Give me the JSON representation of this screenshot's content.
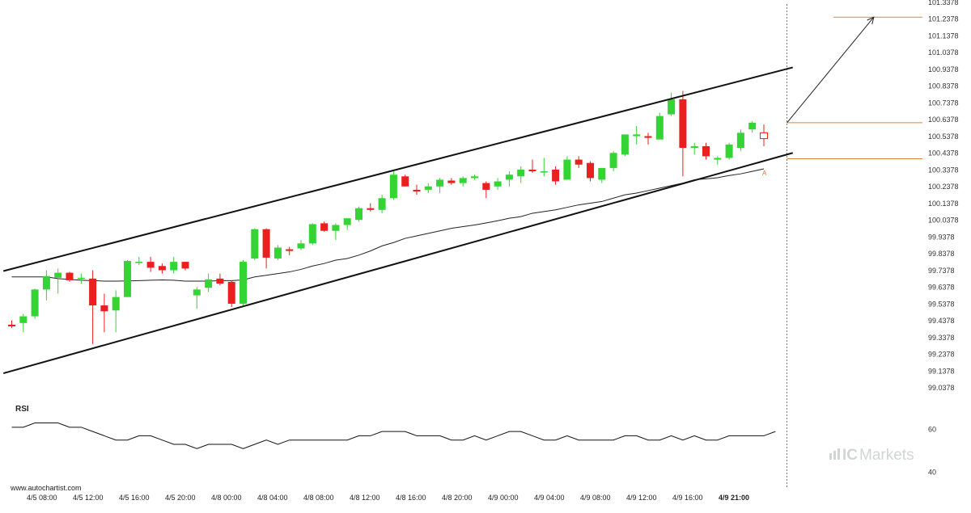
{
  "colors": {
    "up": "#34d434",
    "down": "#ea1f1f",
    "level": "#e0823a",
    "channel": "#111111",
    "forecast": "#222222",
    "sma": "#222222",
    "brand": "#cfd6d4"
  },
  "watermark": "www.autochartist.com",
  "brand": {
    "prefix": "IC",
    "suffix": "Markets",
    "icon": "bar-chart-logo-icon"
  },
  "chart_data": [
    {
      "type": "candlestick",
      "title": "",
      "ylim": [
        99.0,
        101.3378
      ],
      "y_ticks": [
        "101.3378",
        "101.2378",
        "101.1378",
        "101.0378",
        "100.9378",
        "100.8378",
        "100.7378",
        "100.6378",
        "100.5378",
        "100.4378",
        "100.3378",
        "100.2378",
        "100.1378",
        "100.0378",
        "99.9378",
        "99.8378",
        "99.7378",
        "99.6378",
        "99.5378",
        "99.4378",
        "99.3378",
        "99.2378",
        "99.1378",
        "99.0378"
      ],
      "x_ticks": [
        "4/5 08:00",
        "4/5 12:00",
        "4/5 16:00",
        "4/5 20:00",
        "4/8 00:00",
        "4/8 04:00",
        "4/8 08:00",
        "4/8 12:00",
        "4/8 16:00",
        "4/8 20:00",
        "4/9 00:00",
        "4/9 04:00",
        "4/9 08:00",
        "4/9 12:00",
        "4/9 16:00",
        "4/9 21:00"
      ],
      "highlighted_x_tick": "4/9 21:00",
      "candles": [
        {
          "o": 99.415,
          "h": 99.44,
          "l": 99.395,
          "c": 99.405
        },
        {
          "o": 99.425,
          "h": 99.48,
          "l": 99.37,
          "c": 99.465
        },
        {
          "o": 99.465,
          "h": 99.63,
          "l": 99.45,
          "c": 99.625
        },
        {
          "o": 99.625,
          "h": 99.74,
          "l": 99.56,
          "c": 99.705
        },
        {
          "o": 99.695,
          "h": 99.75,
          "l": 99.6,
          "c": 99.725
        },
        {
          "o": 99.725,
          "h": 99.73,
          "l": 99.67,
          "c": 99.68
        },
        {
          "o": 99.69,
          "h": 99.72,
          "l": 99.66,
          "c": 99.695
        },
        {
          "o": 99.69,
          "h": 99.74,
          "l": 99.3,
          "c": 99.53
        },
        {
          "o": 99.53,
          "h": 99.6,
          "l": 99.37,
          "c": 99.495
        },
        {
          "o": 99.5,
          "h": 99.62,
          "l": 99.37,
          "c": 99.58
        },
        {
          "o": 99.58,
          "h": 99.8,
          "l": 99.58,
          "c": 99.795
        },
        {
          "o": 99.79,
          "h": 99.82,
          "l": 99.77,
          "c": 99.79
        },
        {
          "o": 99.79,
          "h": 99.82,
          "l": 99.73,
          "c": 99.755
        },
        {
          "o": 99.765,
          "h": 99.78,
          "l": 99.72,
          "c": 99.74
        },
        {
          "o": 99.74,
          "h": 99.82,
          "l": 99.72,
          "c": 99.79
        },
        {
          "o": 99.79,
          "h": 99.79,
          "l": 99.74,
          "c": 99.75
        },
        {
          "o": 99.59,
          "h": 99.64,
          "l": 99.51,
          "c": 99.625
        },
        {
          "o": 99.635,
          "h": 99.72,
          "l": 99.61,
          "c": 99.685
        },
        {
          "o": 99.69,
          "h": 99.72,
          "l": 99.65,
          "c": 99.66
        },
        {
          "o": 99.67,
          "h": 99.68,
          "l": 99.52,
          "c": 99.54
        },
        {
          "o": 99.54,
          "h": 99.8,
          "l": 99.52,
          "c": 99.79
        },
        {
          "o": 99.81,
          "h": 99.99,
          "l": 99.8,
          "c": 99.985
        },
        {
          "o": 99.985,
          "h": 99.99,
          "l": 99.75,
          "c": 99.815
        },
        {
          "o": 99.81,
          "h": 99.89,
          "l": 99.8,
          "c": 99.875
        },
        {
          "o": 99.865,
          "h": 99.88,
          "l": 99.83,
          "c": 99.855
        },
        {
          "o": 99.87,
          "h": 99.92,
          "l": 99.86,
          "c": 99.9
        },
        {
          "o": 99.9,
          "h": 100.02,
          "l": 99.89,
          "c": 100.015
        },
        {
          "o": 100.02,
          "h": 100.03,
          "l": 99.97,
          "c": 99.975
        },
        {
          "o": 99.975,
          "h": 100.02,
          "l": 99.92,
          "c": 100.01
        },
        {
          "o": 100.01,
          "h": 100.04,
          "l": 99.98,
          "c": 100.05
        },
        {
          "o": 100.04,
          "h": 100.12,
          "l": 100.03,
          "c": 100.11
        },
        {
          "o": 100.11,
          "h": 100.14,
          "l": 100.09,
          "c": 100.1
        },
        {
          "o": 100.1,
          "h": 100.19,
          "l": 100.08,
          "c": 100.17
        },
        {
          "o": 100.17,
          "h": 100.33,
          "l": 100.16,
          "c": 100.31
        },
        {
          "o": 100.3,
          "h": 100.31,
          "l": 100.24,
          "c": 100.24
        },
        {
          "o": 100.22,
          "h": 100.25,
          "l": 100.19,
          "c": 100.21
        },
        {
          "o": 100.22,
          "h": 100.26,
          "l": 100.2,
          "c": 100.24
        },
        {
          "o": 100.24,
          "h": 100.29,
          "l": 100.2,
          "c": 100.28
        },
        {
          "o": 100.275,
          "h": 100.29,
          "l": 100.25,
          "c": 100.26
        },
        {
          "o": 100.26,
          "h": 100.3,
          "l": 100.24,
          "c": 100.29
        },
        {
          "o": 100.29,
          "h": 100.31,
          "l": 100.28,
          "c": 100.3
        },
        {
          "o": 100.26,
          "h": 100.27,
          "l": 100.17,
          "c": 100.22
        },
        {
          "o": 100.24,
          "h": 100.29,
          "l": 100.22,
          "c": 100.27
        },
        {
          "o": 100.28,
          "h": 100.33,
          "l": 100.24,
          "c": 100.31
        },
        {
          "o": 100.3,
          "h": 100.36,
          "l": 100.26,
          "c": 100.34
        },
        {
          "o": 100.34,
          "h": 100.4,
          "l": 100.32,
          "c": 100.33
        },
        {
          "o": 100.33,
          "h": 100.41,
          "l": 100.3,
          "c": 100.33
        },
        {
          "o": 100.34,
          "h": 100.36,
          "l": 100.25,
          "c": 100.27
        },
        {
          "o": 100.28,
          "h": 100.42,
          "l": 100.28,
          "c": 100.4
        },
        {
          "o": 100.4,
          "h": 100.42,
          "l": 100.35,
          "c": 100.37
        },
        {
          "o": 100.38,
          "h": 100.39,
          "l": 100.27,
          "c": 100.29
        },
        {
          "o": 100.28,
          "h": 100.35,
          "l": 100.26,
          "c": 100.35
        },
        {
          "o": 100.35,
          "h": 100.45,
          "l": 100.33,
          "c": 100.44
        },
        {
          "o": 100.43,
          "h": 100.55,
          "l": 100.42,
          "c": 100.55
        },
        {
          "o": 100.54,
          "h": 100.6,
          "l": 100.49,
          "c": 100.55
        },
        {
          "o": 100.54,
          "h": 100.56,
          "l": 100.49,
          "c": 100.53
        },
        {
          "o": 100.52,
          "h": 100.68,
          "l": 100.52,
          "c": 100.66
        },
        {
          "o": 100.67,
          "h": 100.8,
          "l": 100.66,
          "c": 100.76
        },
        {
          "o": 100.76,
          "h": 100.81,
          "l": 100.3,
          "c": 100.47
        },
        {
          "o": 100.47,
          "h": 100.5,
          "l": 100.43,
          "c": 100.48
        },
        {
          "o": 100.48,
          "h": 100.5,
          "l": 100.4,
          "c": 100.42
        },
        {
          "o": 100.4,
          "h": 100.42,
          "l": 100.37,
          "c": 100.41
        },
        {
          "o": 100.41,
          "h": 100.5,
          "l": 100.4,
          "c": 100.49
        },
        {
          "o": 100.47,
          "h": 100.58,
          "l": 100.45,
          "c": 100.56
        },
        {
          "o": 100.58,
          "h": 100.63,
          "l": 100.56,
          "c": 100.62
        },
        {
          "o": 100.56,
          "h": 100.61,
          "l": 100.48,
          "c": 100.525,
          "hollow": true
        }
      ],
      "moving_average": [
        99.7,
        99.7,
        99.7,
        99.7,
        99.69,
        99.685,
        99.68,
        99.678,
        99.675,
        99.675,
        99.676,
        99.678,
        99.68,
        99.682,
        99.68,
        99.675,
        99.675,
        99.675,
        99.678,
        99.678,
        99.682,
        99.7,
        99.71,
        99.72,
        99.73,
        99.745,
        99.765,
        99.78,
        99.8,
        99.81,
        99.83,
        99.855,
        99.885,
        99.905,
        99.93,
        99.945,
        99.96,
        99.975,
        99.99,
        100.0,
        100.01,
        100.022,
        100.035,
        100.05,
        100.06,
        100.08,
        100.09,
        100.1,
        100.115,
        100.13,
        100.14,
        100.15,
        100.17,
        100.19,
        100.2,
        100.215,
        100.23,
        100.245,
        100.26,
        100.28,
        100.285,
        100.292,
        100.305,
        100.315,
        100.33,
        100.345
      ],
      "channel": {
        "upper": {
          "start_index": -1,
          "start_value": 99.735,
          "end_index": 67.5,
          "end_value": 100.95
        },
        "lower": {
          "start_index": -1,
          "start_value": 99.125,
          "end_index": 67.5,
          "end_value": 100.44
        }
      },
      "levels": [
        {
          "value": 101.25,
          "from_index": 71
        },
        {
          "value": 100.62,
          "from_index": 67
        },
        {
          "value": 100.405,
          "from_index": 67
        }
      ],
      "forecast_arrow": {
        "from_index": 67,
        "from_value": 100.62,
        "to_index": 74.5,
        "to_value": 101.25
      },
      "pattern_marker": {
        "text": "A",
        "index": 65,
        "value": 100.32
      },
      "current_time_index": 67
    },
    {
      "type": "line",
      "title": "RSI",
      "ylim": [
        36,
        70
      ],
      "y_ticks": [
        "60",
        "40"
      ],
      "values": [
        61,
        61,
        63,
        63,
        63,
        61,
        61,
        59,
        57,
        55,
        55,
        57,
        57,
        55,
        53,
        53,
        51,
        53,
        53,
        53,
        51,
        53,
        55,
        53,
        55,
        55,
        55,
        55,
        55,
        55,
        57,
        57,
        59,
        59,
        59,
        57,
        57,
        57,
        55,
        55,
        57,
        55,
        57,
        59,
        59,
        57,
        55,
        55,
        57,
        55,
        55,
        55,
        55,
        57,
        57,
        55,
        55,
        57,
        55,
        57,
        55,
        55,
        57,
        57,
        57,
        57,
        59
      ]
    }
  ]
}
